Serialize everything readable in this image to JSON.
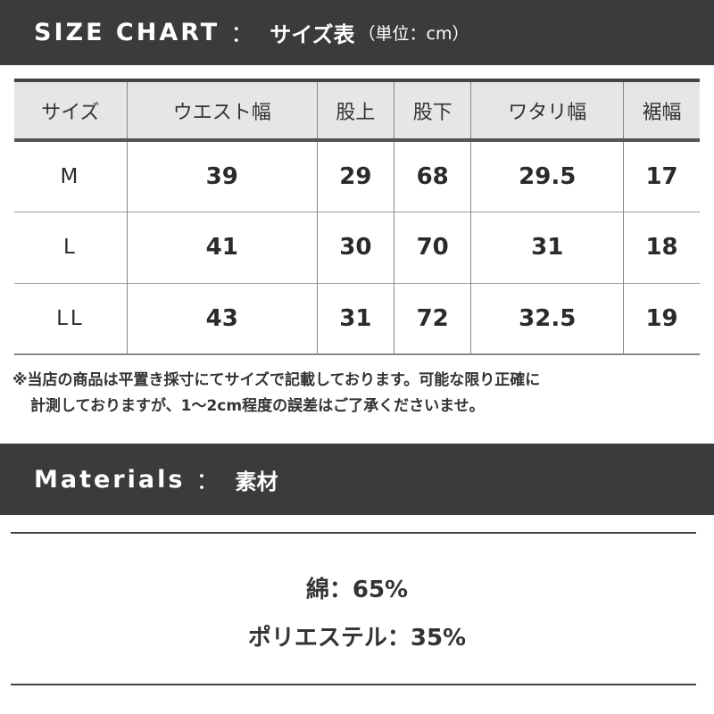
{
  "size_chart": {
    "title_en": "SIZE CHART",
    "separator": "：",
    "title_jp": "サイズ表",
    "unit": "（単位：cm）",
    "headers": [
      "サイズ",
      "ウエスト幅",
      "股上",
      "股下",
      "ワタリ幅",
      "裾幅"
    ],
    "rows": [
      [
        "M",
        "39",
        "29",
        "68",
        "29.5",
        "17"
      ],
      [
        "L",
        "41",
        "30",
        "70",
        "31",
        "18"
      ],
      [
        "LL",
        "43",
        "31",
        "72",
        "32.5",
        "19"
      ]
    ],
    "note_line1": "※当店の商品は平置き採寸にてサイズで記載しております。可能な限り正確に",
    "note_line2": "計測しておりますが、1〜2cm程度の誤差はご了承くださいませ。"
  },
  "materials": {
    "title_en": "Materials",
    "separator": "：",
    "title_jp": "素材",
    "items": [
      "綿：65%",
      "ポリエステル：35%"
    ]
  },
  "colors": {
    "header_bar": "#3b3b3d",
    "table_header_bg": "#e6e6e6"
  }
}
